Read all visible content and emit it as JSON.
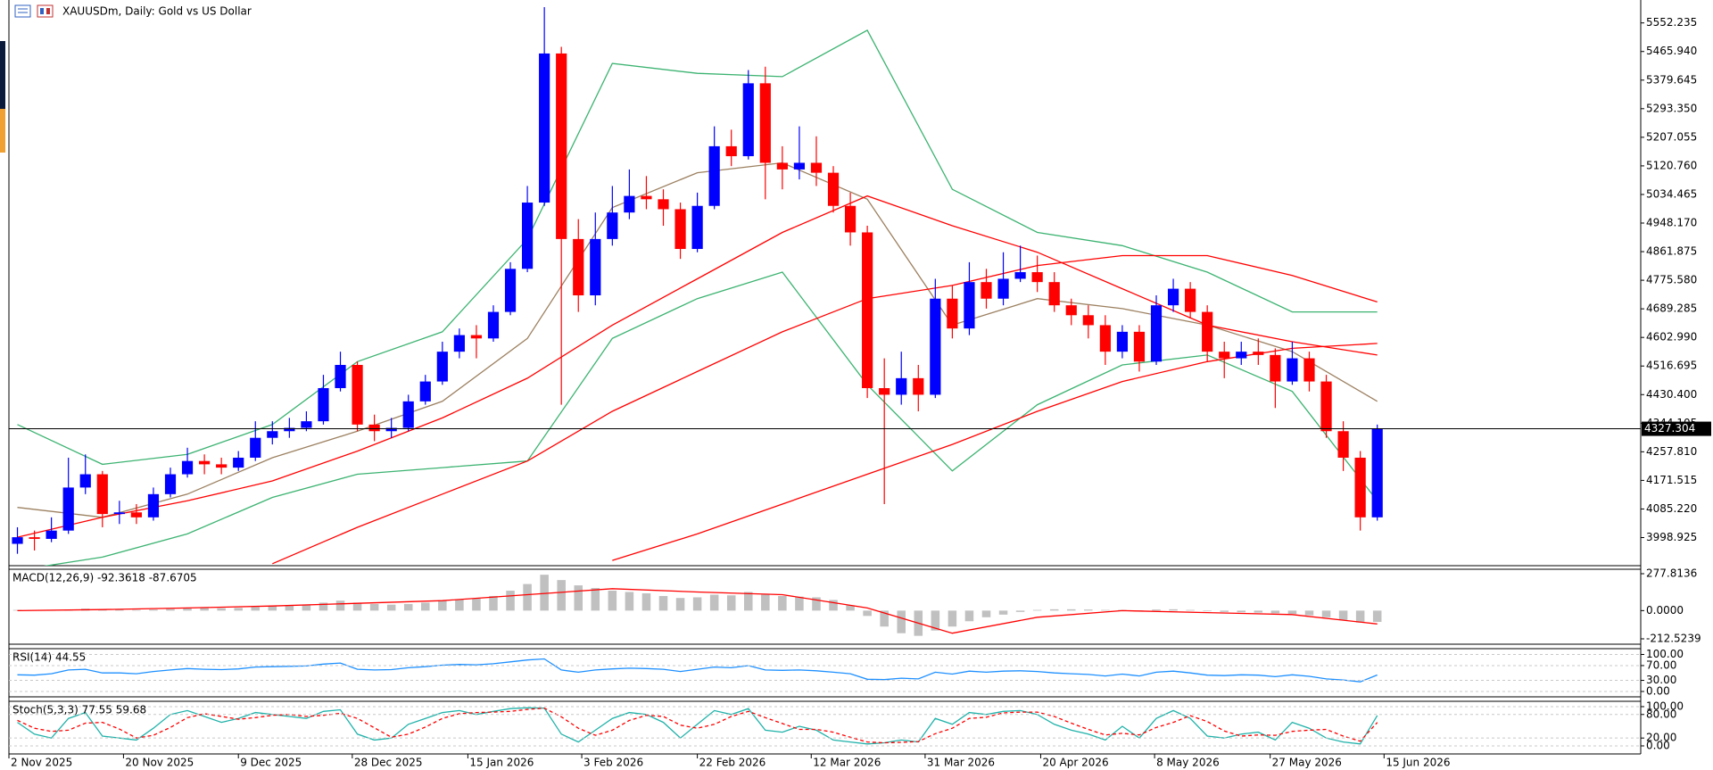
{
  "chart_data": [
    {
      "type": "candlestick",
      "title": "XAUUSDm, Daily: Gold vs US Dollar",
      "open": [
        3980,
        4000,
        3995,
        4020,
        4150,
        4190,
        4070,
        4075,
        4060,
        4130,
        4190,
        4230,
        4220,
        4210,
        4240,
        4300,
        4320,
        4330,
        4350,
        4450,
        4520,
        4340,
        4320,
        4330,
        4410,
        4470,
        4560,
        4610,
        4600,
        4680,
        4810,
        5010,
        5460,
        4900,
        4730,
        4900,
        4980,
        5030,
        5020,
        4990,
        4870,
        5000,
        5180,
        5150,
        5370,
        5130,
        5110,
        5130,
        5100,
        5000,
        4920,
        4450,
        4430,
        4480,
        4430,
        4720,
        4630,
        4770,
        4720,
        4780,
        4800,
        4770,
        4700,
        4670,
        4640,
        4560,
        4620,
        4530,
        4700,
        4750,
        4680,
        4560,
        4540,
        4560,
        4550,
        4470,
        4540,
        4470,
        4320,
        4240,
        4060
      ],
      "high": [
        4030,
        4020,
        4060,
        4240,
        4250,
        4200,
        4110,
        4100,
        4150,
        4210,
        4270,
        4250,
        4240,
        4260,
        4350,
        4350,
        4360,
        4380,
        4490,
        4560,
        4530,
        4370,
        4360,
        4430,
        4490,
        4590,
        4630,
        4640,
        4700,
        4830,
        5060,
        5600,
        5480,
        4960,
        4980,
        5060,
        5110,
        5090,
        5050,
        5010,
        5040,
        5240,
        5230,
        5410,
        5420,
        5180,
        5240,
        5210,
        5120,
        5040,
        4940,
        4540,
        4560,
        4520,
        4780,
        4760,
        4830,
        4810,
        4860,
        4880,
        4850,
        4800,
        4720,
        4700,
        4670,
        4640,
        4640,
        4730,
        4780,
        4770,
        4700,
        4590,
        4590,
        4600,
        4570,
        4590,
        4560,
        4490,
        4350,
        4260,
        4340
      ],
      "low": [
        3950,
        3960,
        3985,
        4010,
        4130,
        4030,
        4040,
        4040,
        4050,
        4120,
        4180,
        4190,
        4190,
        4200,
        4230,
        4280,
        4300,
        4320,
        4340,
        4440,
        4320,
        4290,
        4300,
        4320,
        4400,
        4460,
        4540,
        4540,
        4590,
        4670,
        4800,
        5000,
        4400,
        4680,
        4700,
        4880,
        4960,
        4990,
        4940,
        4840,
        4860,
        4990,
        5120,
        5140,
        5020,
        5050,
        5080,
        5060,
        4980,
        4880,
        4420,
        4100,
        4400,
        4380,
        4420,
        4600,
        4610,
        4690,
        4700,
        4770,
        4740,
        4680,
        4640,
        4600,
        4520,
        4540,
        4500,
        4520,
        4680,
        4660,
        4530,
        4480,
        4520,
        4520,
        4390,
        4460,
        4440,
        4300,
        4200,
        4020,
        4050
      ],
      "close": [
        4000,
        3995,
        4020,
        4150,
        4190,
        4070,
        4075,
        4060,
        4130,
        4190,
        4230,
        4220,
        4210,
        4240,
        4300,
        4320,
        4330,
        4350,
        4450,
        4520,
        4340,
        4320,
        4330,
        4410,
        4470,
        4560,
        4610,
        4600,
        4680,
        4810,
        5010,
        5460,
        4900,
        4730,
        4900,
        4980,
        5030,
        5020,
        4990,
        4870,
        5000,
        5180,
        5150,
        5370,
        5130,
        5110,
        5130,
        5100,
        5000,
        4920,
        4450,
        4430,
        4480,
        4430,
        4720,
        4630,
        4770,
        4720,
        4780,
        4800,
        4770,
        4700,
        4670,
        4640,
        4560,
        4620,
        4530,
        4700,
        4750,
        4680,
        4560,
        4540,
        4560,
        4550,
        4470,
        4540,
        4470,
        4320,
        4240,
        4060,
        4327.304
      ],
      "up_color": "#0000ff",
      "down_color": "#ff0000",
      "last_price": 4327.304,
      "xlim": [
        0,
        96
      ],
      "xticks": [
        {
          "value": 0,
          "label": "2 Nov 2025"
        },
        {
          "value": 6.74,
          "label": "20 Nov 2025"
        },
        {
          "value": 13.5,
          "label": "9 Dec 2025"
        },
        {
          "value": 20.2,
          "label": "28 Dec 2025"
        },
        {
          "value": 27,
          "label": "15 Jan 2026"
        },
        {
          "value": 33.7,
          "label": "3 Feb 2026"
        },
        {
          "value": 40.5,
          "label": "22 Feb 2026"
        },
        {
          "value": 47.2,
          "label": "12 Mar 2026"
        },
        {
          "value": 53.9,
          "label": "31 Mar 2026"
        },
        {
          "value": 60.7,
          "label": "20 Apr 2026"
        },
        {
          "value": 67.4,
          "label": "8 May 2026"
        },
        {
          "value": 74.2,
          "label": "27 May 2026"
        },
        {
          "value": 80.9,
          "label": "15 Jun 2026"
        }
      ],
      "ylim": [
        3914.1,
        5621.4
      ],
      "yticks": [
        5552.235,
        {
          "value": 5465.94,
          "label": "5465.940"
        },
        5379.645,
        {
          "value": 5293.35,
          "label": "5293.350"
        },
        5207.055,
        {
          "value": 5120.76,
          "label": "5120.760"
        },
        5034.465,
        {
          "value": 4948.17,
          "label": "4948.170"
        },
        4861.875,
        {
          "value": 4775.58,
          "label": "4775.580"
        },
        4689.285,
        {
          "value": 4602.99,
          "label": "4602.990"
        },
        4516.695,
        {
          "value": 4430.4,
          "label": "4430.400"
        },
        4344.105,
        {
          "value": 4257.81,
          "label": "4257.810"
        },
        4171.515,
        {
          "value": 4085.22,
          "label": "4085.220"
        },
        3998.925
      ],
      "overlay_x": [
        0,
        5,
        10,
        15,
        20,
        25,
        30,
        35,
        40,
        45,
        50,
        55,
        60,
        65,
        70,
        75,
        80
      ],
      "overlays": [
        {
          "color": "#9c8060",
          "values": [
            4090,
            4060,
            4130,
            4240,
            4320,
            4410,
            4600,
            4995,
            5100,
            5130,
            5020,
            4640,
            4720,
            4690,
            4640,
            4560,
            4410
          ]
        },
        {
          "color": "#3cb371",
          "values": [
            4340,
            4220,
            4250,
            4340,
            4530,
            4620,
            4900,
            5430,
            5400,
            5390,
            5530,
            5050,
            4920,
            4880,
            4800,
            4680,
            4680
          ]
        },
        {
          "color": "#3cb371",
          "values": [
            3900,
            3940,
            4010,
            4120,
            4190,
            4210,
            4230,
            4600,
            4720,
            4800,
            4460,
            4200,
            4400,
            4520,
            4550,
            4440,
            4110
          ]
        },
        {
          "color": "#ff0000",
          "values": [
            4000,
            4060,
            4110,
            4170,
            4260,
            4360,
            4480,
            4640,
            4780,
            4920,
            5030,
            4940,
            4860,
            4750,
            4640,
            4590,
            4550
          ]
        },
        {
          "color": "#ff0000",
          "values": [
            null,
            null,
            null,
            3920,
            4030,
            4130,
            4230,
            4380,
            4500,
            4620,
            4720,
            4760,
            4820,
            4850,
            4850,
            4790,
            4710
          ]
        },
        {
          "color": "#ff0000",
          "values": [
            null,
            null,
            null,
            null,
            null,
            null,
            null,
            3930,
            4010,
            4100,
            4190,
            4280,
            4380,
            4470,
            4530,
            4570,
            4585
          ]
        }
      ]
    },
    {
      "type": "macd",
      "label": "MACD(12,26,9) -92.3618 -87.6705",
      "histogram": [
        5,
        3,
        2,
        8,
        15,
        10,
        8,
        5,
        8,
        12,
        18,
        20,
        18,
        20,
        28,
        35,
        40,
        45,
        60,
        75,
        60,
        50,
        45,
        50,
        60,
        75,
        85,
        90,
        110,
        150,
        200,
        270,
        230,
        190,
        170,
        150,
        140,
        130,
        110,
        95,
        100,
        120,
        115,
        140,
        120,
        110,
        105,
        100,
        80,
        40,
        -40,
        -120,
        -170,
        -190,
        -150,
        -120,
        -80,
        -50,
        -30,
        -10,
        5,
        10,
        10,
        8,
        5,
        5,
        2,
        8,
        10,
        5,
        -5,
        -10,
        -12,
        -15,
        -20,
        -25,
        -35,
        -50,
        -70,
        -90,
        -85
      ],
      "hist_color": "#c0c0c0",
      "signal_x": [
        0,
        5,
        10,
        15,
        20,
        25,
        30,
        35,
        40,
        45,
        50,
        55,
        60,
        65,
        70,
        75,
        80
      ],
      "signal": [
        0,
        8,
        20,
        35,
        55,
        75,
        120,
        165,
        140,
        120,
        20,
        -170,
        -50,
        0,
        -15,
        -30,
        -100
      ],
      "signal_color": "#ff0000",
      "ylim": [
        -252.8,
        311.4
      ],
      "yticks": [
        277.8136,
        {
          "value": 0,
          "label": "0.0000"
        },
        -212.5239
      ]
    },
    {
      "type": "line",
      "label": "RSI(14) 44.55",
      "series": [
        {
          "color": "#1e90ff",
          "values": [
            45,
            44,
            48,
            58,
            60,
            50,
            50,
            48,
            54,
            58,
            62,
            60,
            59,
            61,
            66,
            67,
            68,
            69,
            74,
            77,
            60,
            58,
            59,
            64,
            67,
            71,
            73,
            72,
            75,
            80,
            85,
            88,
            58,
            52,
            58,
            61,
            63,
            62,
            60,
            54,
            60,
            66,
            64,
            70,
            58,
            57,
            58,
            56,
            52,
            48,
            33,
            32,
            36,
            34,
            52,
            47,
            55,
            52,
            55,
            56,
            54,
            50,
            48,
            46,
            42,
            47,
            42,
            52,
            55,
            50,
            44,
            43,
            45,
            44,
            40,
            45,
            41,
            34,
            31,
            26,
            44.55
          ]
        }
      ],
      "ylim": [
        -14.5,
        115.7
      ],
      "yticks": [
        {
          "value": 100,
          "label": "100.00"
        },
        {
          "value": 70,
          "label": "70.00"
        },
        {
          "value": 30,
          "label": "30.00"
        },
        {
          "value": 0,
          "label": "0.00"
        }
      ]
    },
    {
      "type": "line",
      "label": "Stoch(5,3,3) 77.55 59.68",
      "series": [
        {
          "color": "#20b2aa",
          "values": [
            60,
            30,
            20,
            70,
            85,
            25,
            20,
            15,
            45,
            80,
            90,
            75,
            60,
            70,
            85,
            80,
            75,
            70,
            88,
            92,
            30,
            15,
            20,
            55,
            70,
            85,
            90,
            80,
            88,
            95,
            97,
            96,
            30,
            10,
            40,
            70,
            85,
            80,
            60,
            20,
            55,
            90,
            80,
            95,
            40,
            35,
            50,
            40,
            15,
            10,
            5,
            8,
            15,
            10,
            70,
            55,
            85,
            80,
            88,
            90,
            80,
            55,
            40,
            30,
            15,
            50,
            20,
            70,
            90,
            70,
            25,
            20,
            30,
            35,
            15,
            60,
            45,
            20,
            10,
            5,
            77.55
          ]
        },
        {
          "color": "#ff0000",
          "dash": true,
          "values": [
            65,
            45,
            37,
            40,
            58,
            60,
            43,
            20,
            27,
            47,
            72,
            82,
            75,
            68,
            72,
            78,
            80,
            75,
            78,
            83,
            70,
            46,
            22,
            30,
            48,
            70,
            82,
            85,
            86,
            88,
            93,
            96,
            74,
            45,
            27,
            40,
            65,
            78,
            75,
            53,
            45,
            55,
            75,
            88,
            72,
            57,
            42,
            42,
            35,
            22,
            10,
            8,
            9,
            11,
            31,
            45,
            70,
            73,
            84,
            86,
            86,
            75,
            58,
            42,
            28,
            32,
            28,
            47,
            60,
            77,
            62,
            38,
            25,
            28,
            27,
            37,
            40,
            42,
            25,
            12,
            59.68
          ]
        }
      ],
      "ylim": [
        -20.5,
        113.6
      ],
      "yticks": [
        {
          "value": 100,
          "label": "100.00"
        },
        {
          "value": 80,
          "label": "80.00"
        },
        {
          "value": 20,
          "label": "20.00"
        },
        {
          "value": 0,
          "label": "0.00"
        }
      ]
    }
  ]
}
